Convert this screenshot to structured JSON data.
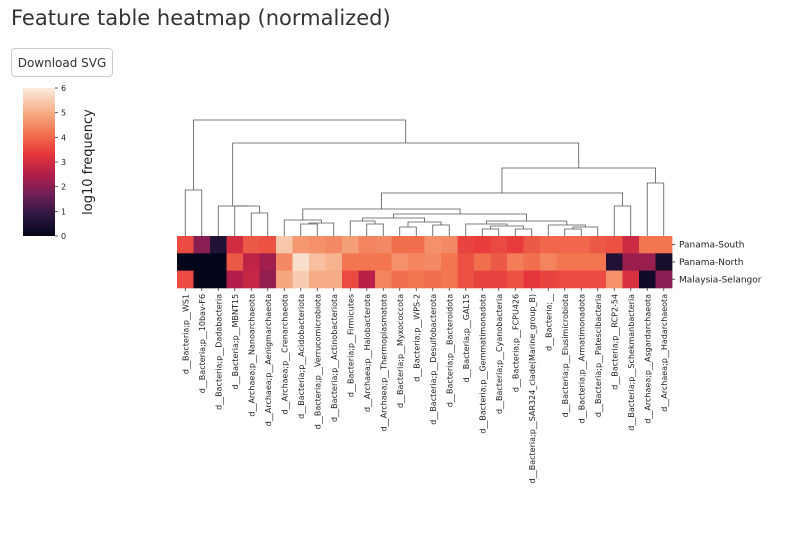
{
  "page": {
    "title": "Feature table heatmap (normalized)",
    "download_label": "Download SVG"
  },
  "chart_data": {
    "type": "heatmap",
    "title": "",
    "colorbar": {
      "label": "log10 frequency",
      "ticks": [
        "0",
        "1",
        "2",
        "3",
        "4",
        "5",
        "6"
      ],
      "range": [
        0,
        6
      ],
      "colormap": "rocket"
    },
    "rows": [
      "Panama-South",
      "Panama-North",
      "Malaysia-Selangor"
    ],
    "columns": [
      "d__Bacteria;p__WS1",
      "d__Bacteria;p__10bav-F6",
      "d__Bacteria;p__Dadabacteria",
      "d__Bacteria;p__MBNT15",
      "d__Archaea;p__Nanoarchaeota",
      "d__Archaea;p__Aenigmarchaeota",
      "d__Archaea;p__Crenarchaeota",
      "d__Bacteria;p__Acidobacteriota",
      "d__Bacteria;p__Verrucomicrobiota",
      "d__Bacteria;p__Actinobacteriota",
      "d__Bacteria;p__Firmicutes",
      "d__Archaea;p__Halobacterota",
      "d__Archaea;p__Thermoplasmatota",
      "d__Bacteria;p__Myxococcota",
      "d__Bacteria;p__WPS-2",
      "d__Bacteria;p__Desulfobacterota",
      "d__Bacteria;p__Bacteroidota",
      "d__Bacteria;p__GAL15",
      "d__Bacteria;p__Gemmatimonadota",
      "d__Bacteria;p__Cyanobacteria",
      "d__Bacteria;p__FCPU426",
      "d__Bacteria;p__SAR324_clade(Marine_group_B)",
      "d__Bacteria;__",
      "d__Bacteria;p__Elusimicrobiota",
      "d__Bacteria;p__Armatimonadota",
      "d__Bacteria;p__Patescibacteria",
      "d__Bacteria;p__RCP2-54",
      "d__Bacteria;p__Schekmanbacteria",
      "d__Archaea;p__Asgardarchaeota",
      "d__Archaea;p__Hadarchaeota"
    ],
    "values": [
      [
        3.6,
        2.0,
        0.6,
        3.0,
        3.8,
        3.7,
        5.4,
        4.7,
        4.6,
        4.5,
        4.8,
        4.4,
        4.5,
        4.1,
        4.1,
        4.6,
        4.5,
        3.5,
        3.4,
        3.6,
        3.4,
        3.8,
        4.0,
        4.0,
        4.0,
        3.8,
        3.7,
        2.9,
        4.2,
        4.2
      ],
      [
        0.0,
        0.0,
        0.0,
        3.8,
        2.7,
        2.3,
        4.5,
        5.8,
        5.3,
        5.1,
        4.2,
        4.2,
        4.2,
        4.6,
        4.4,
        4.5,
        4.2,
        3.7,
        4.1,
        3.8,
        4.3,
        4.1,
        4.4,
        4.2,
        4.2,
        4.2,
        0.6,
        2.2,
        2.2,
        0.4
      ],
      [
        3.6,
        0.0,
        0.0,
        2.5,
        2.8,
        2.1,
        4.9,
        5.5,
        5.0,
        5.0,
        3.6,
        2.6,
        4.4,
        4.1,
        4.2,
        4.1,
        4.2,
        3.7,
        3.5,
        3.5,
        3.7,
        3.3,
        3.5,
        3.6,
        3.6,
        3.6,
        4.6,
        3.1,
        0.3,
        2.0
      ]
    ],
    "row_dendrogram": "none",
    "column_dendrogram": "top"
  }
}
